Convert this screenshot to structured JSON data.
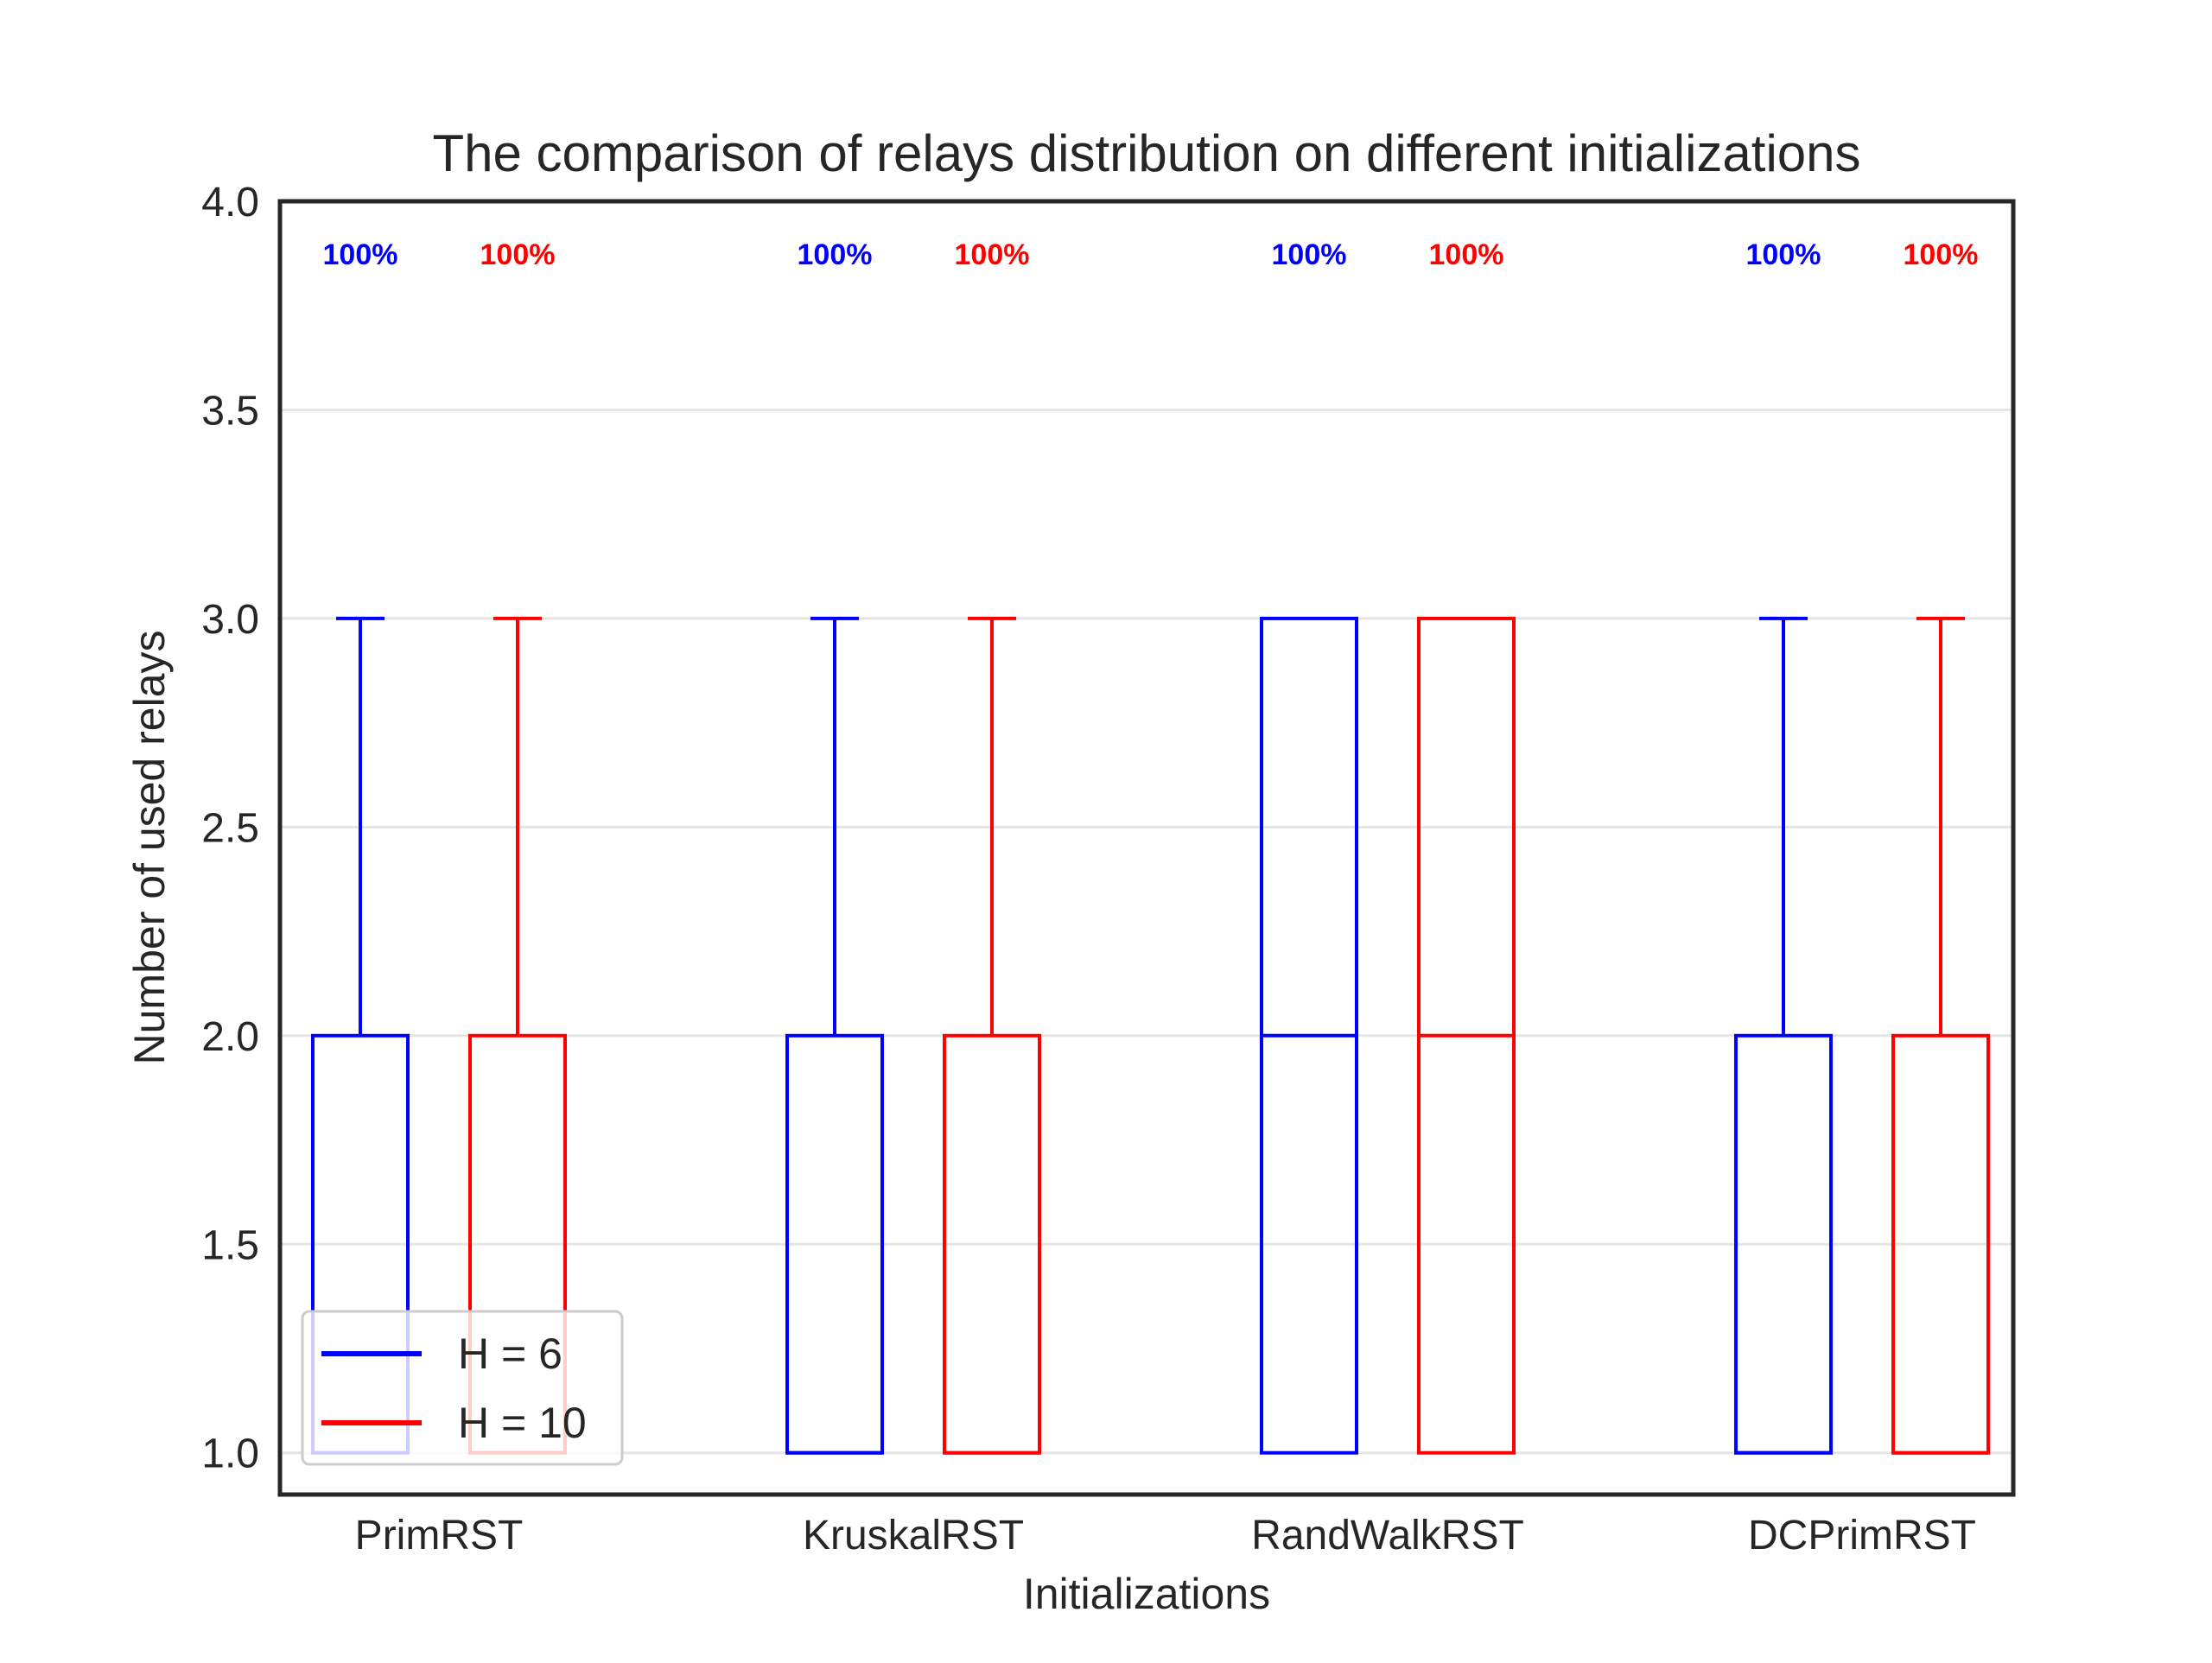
{
  "chart_data": {
    "type": "boxplot",
    "title": "The comparison of relays distribution on different initializations",
    "xlabel": "Initializations",
    "ylabel": "Number of used relays",
    "ylim": [
      0.9,
      4.0
    ],
    "yticks": [
      "1.0",
      "1.5",
      "2.0",
      "2.5",
      "3.0",
      "3.5",
      "4.0"
    ],
    "ytick_values": [
      1.0,
      1.5,
      2.0,
      2.5,
      3.0,
      3.5,
      4.0
    ],
    "grid": "horizontal",
    "categories": [
      "PrimRST",
      "KruskalRST",
      "RandWalkRST",
      "DCPrimRST"
    ],
    "legend_position": "bottom-left",
    "series": [
      {
        "name": "H = 6",
        "color": "#0000ff",
        "boxes": [
          {
            "whislo": 1.0,
            "q1": 1.0,
            "med": 1.0,
            "q3": 2.0,
            "whishi": 3.0,
            "annotation": "100%"
          },
          {
            "whislo": 1.0,
            "q1": 1.0,
            "med": 1.0,
            "q3": 2.0,
            "whishi": 3.0,
            "annotation": "100%"
          },
          {
            "whislo": 1.0,
            "q1": 1.0,
            "med": 2.0,
            "q3": 3.0,
            "whishi": 3.0,
            "annotation": "100%"
          },
          {
            "whislo": 1.0,
            "q1": 1.0,
            "med": 1.0,
            "q3": 2.0,
            "whishi": 3.0,
            "annotation": "100%"
          }
        ]
      },
      {
        "name": "H = 10",
        "color": "#ff0000",
        "boxes": [
          {
            "whislo": 1.0,
            "q1": 1.0,
            "med": 1.0,
            "q3": 2.0,
            "whishi": 3.0,
            "annotation": "100%"
          },
          {
            "whislo": 1.0,
            "q1": 1.0,
            "med": 1.0,
            "q3": 2.0,
            "whishi": 3.0,
            "annotation": "100%"
          },
          {
            "whislo": 1.0,
            "q1": 1.0,
            "med": 2.0,
            "q3": 3.0,
            "whishi": 3.0,
            "annotation": "100%"
          },
          {
            "whislo": 1.0,
            "q1": 1.0,
            "med": 1.0,
            "q3": 2.0,
            "whishi": 3.0,
            "annotation": "100%"
          }
        ]
      }
    ]
  }
}
